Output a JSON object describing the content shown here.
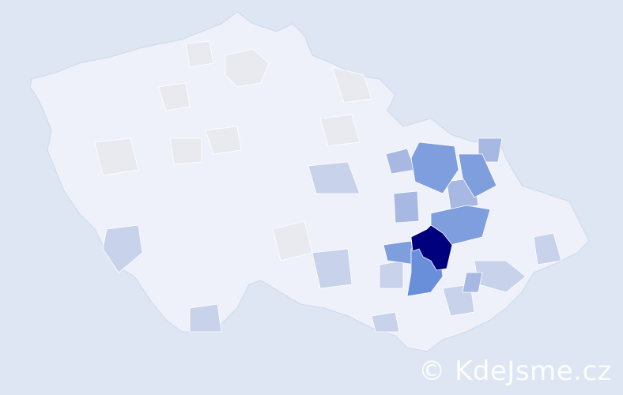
{
  "map": {
    "colors": {
      "background": "#dde6f2",
      "base": "#eef1fa",
      "neutral": "#e8eaf0",
      "border": "#cfd8ea",
      "light": "#c8d2ea",
      "medium_light": "#a7b8e3",
      "medium": "#7f9ede",
      "strong": "#6a8fda",
      "darkest": "#00007e"
    }
  },
  "watermark": {
    "text": "© KdeJsme.cz"
  }
}
